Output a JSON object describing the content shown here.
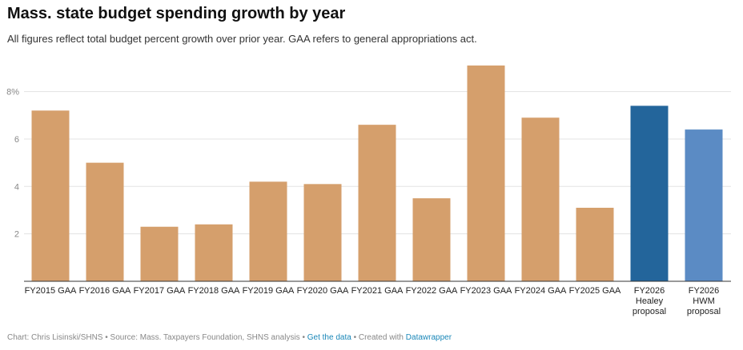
{
  "chart_data": {
    "type": "bar",
    "title": "Mass. state budget spending growth by year",
    "subtitle": "All figures reflect total budget percent growth over prior year. GAA refers to general appropriations act.",
    "categories": [
      "FY2015 GAA",
      "FY2016 GAA",
      "FY2017 GAA",
      "FY2018 GAA",
      "FY2019 GAA",
      "FY2020 GAA",
      "FY2021 GAA",
      "FY2022 GAA",
      "FY2023 GAA",
      "FY2024 GAA",
      "FY2025 GAA",
      "FY2026\nHealey\nproposal",
      "FY2026\nHWM\nproposal"
    ],
    "values": [
      7.2,
      5.0,
      2.3,
      2.4,
      4.2,
      4.1,
      6.6,
      3.5,
      9.1,
      6.9,
      3.1,
      7.4,
      6.4
    ],
    "colors": [
      "#d59f6c",
      "#d59f6c",
      "#d59f6c",
      "#d59f6c",
      "#d59f6c",
      "#d59f6c",
      "#d59f6c",
      "#d59f6c",
      "#d59f6c",
      "#d59f6c",
      "#d59f6c",
      "#23659b",
      "#5b8bc4"
    ],
    "ylim": [
      0,
      9.2
    ],
    "yticks": [
      2,
      4,
      6,
      {
        "value": 8,
        "label": "8%"
      }
    ],
    "grid": true,
    "footer": {
      "credit": "Chart: Chris Lisinski/SHNS • Source: Mass. Taxpayers Foundation, SHNS analysis • ",
      "data_link": "Get the data",
      "created": " • Created with ",
      "tool": "Datawrapper"
    }
  }
}
